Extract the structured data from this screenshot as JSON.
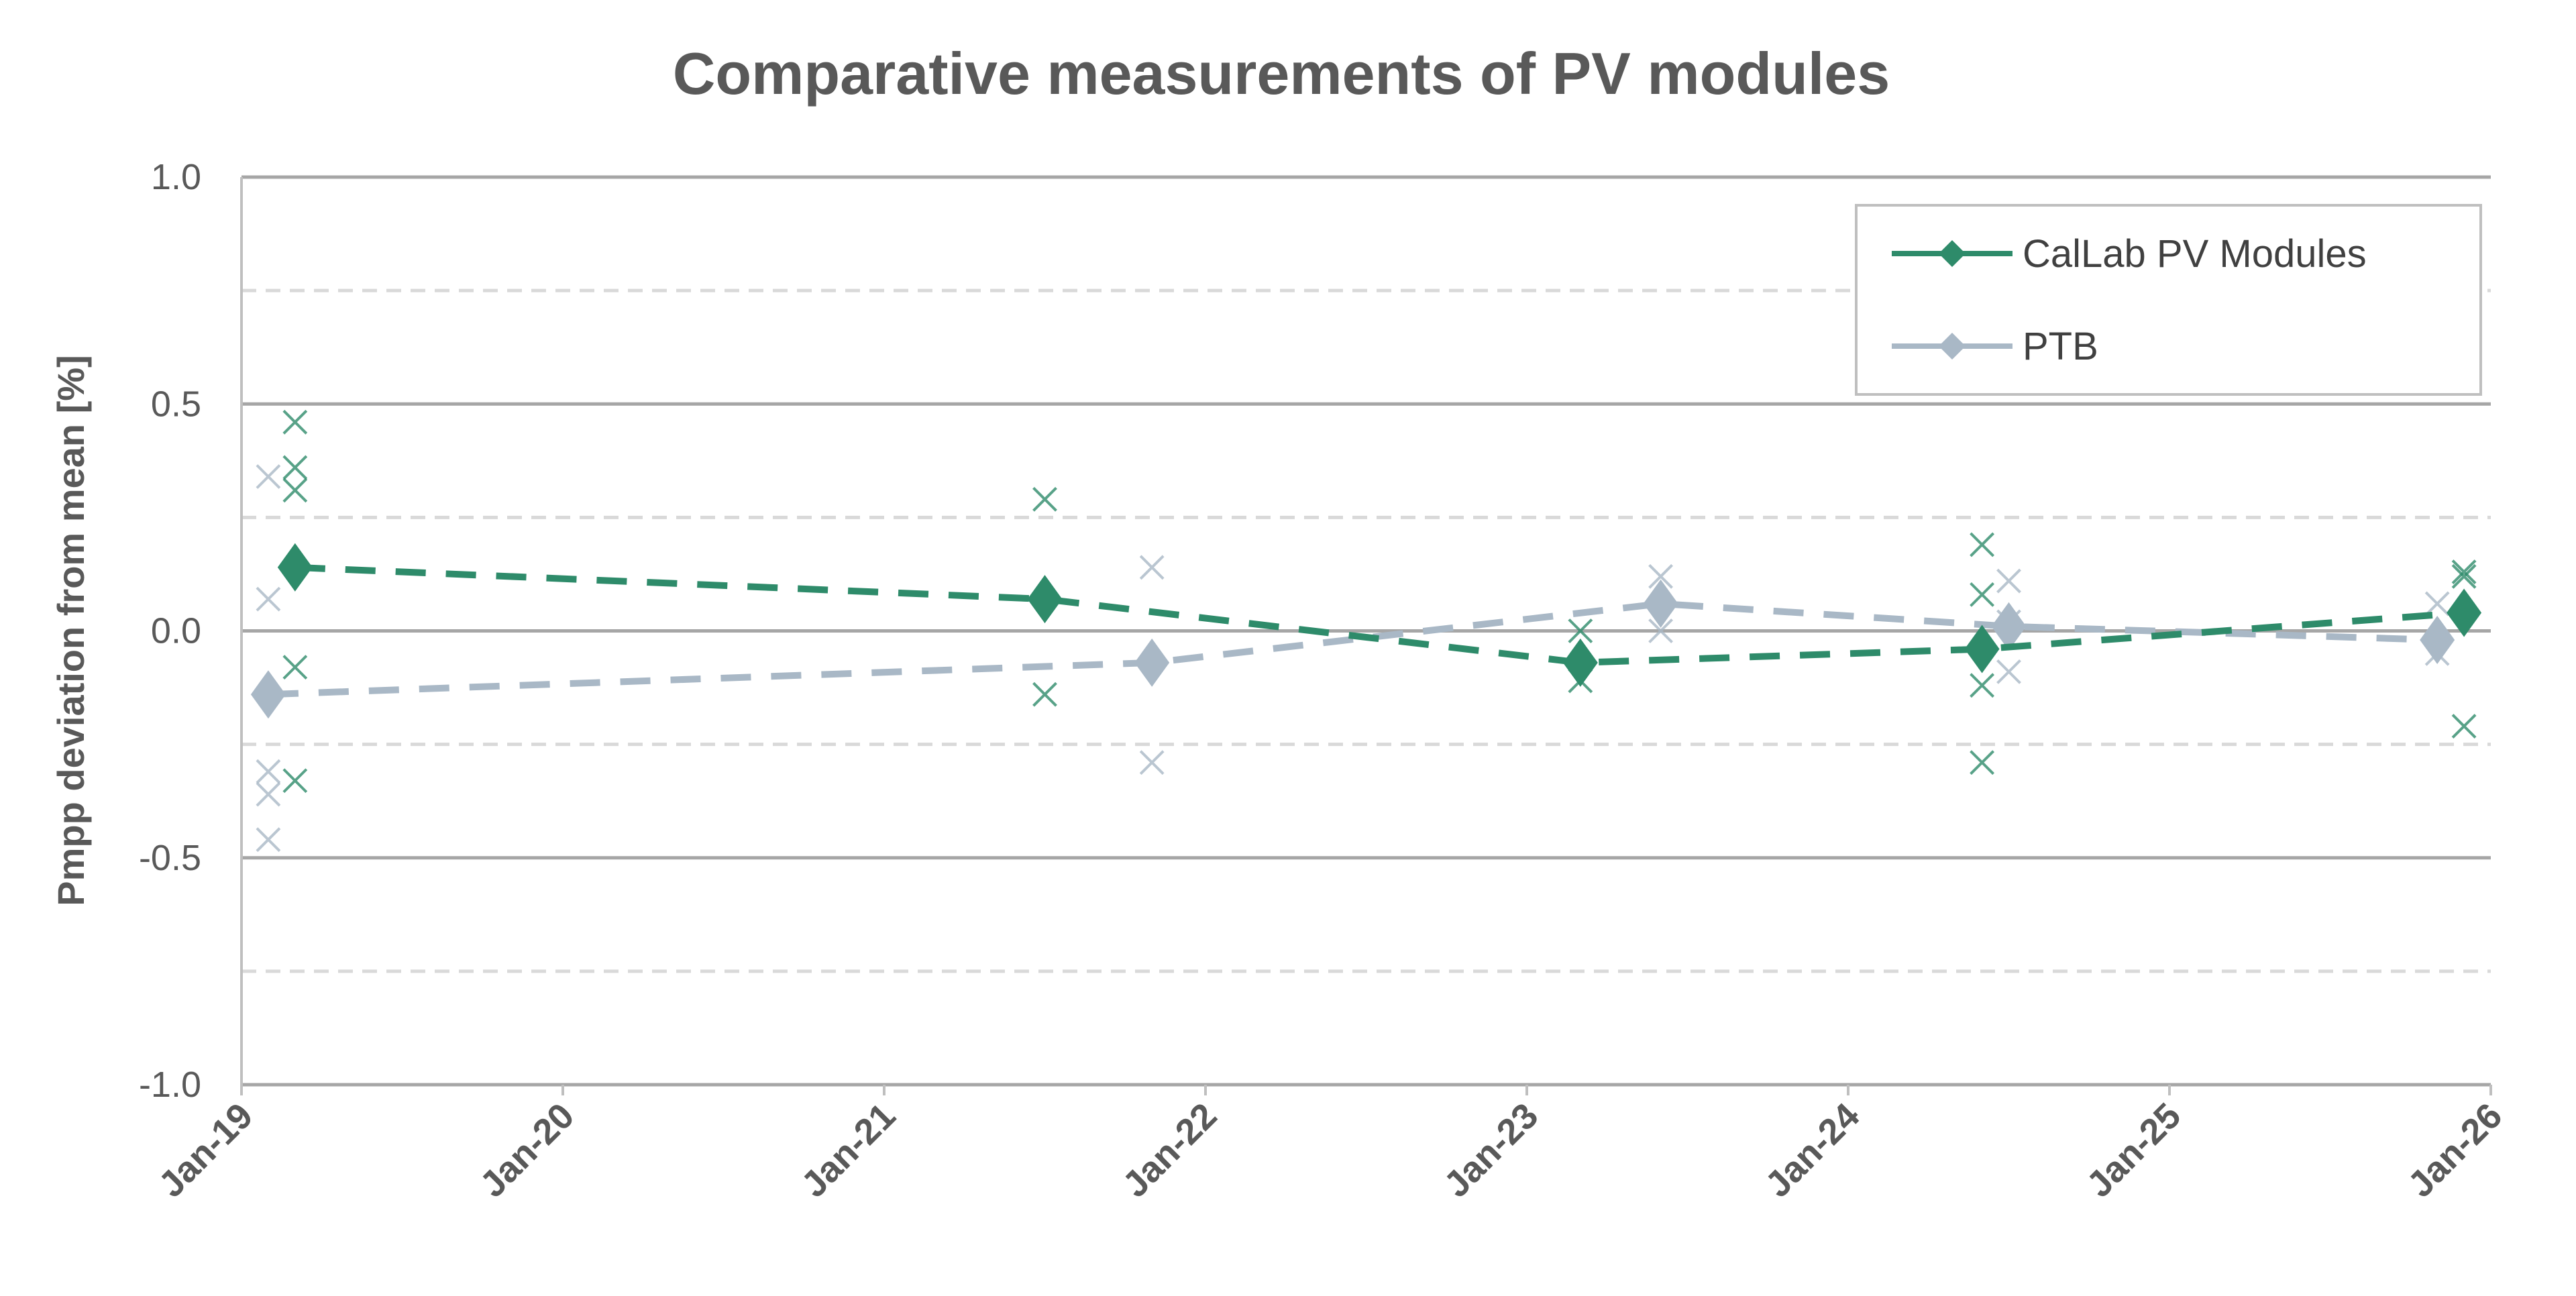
{
  "chart_data": {
    "type": "line",
    "title": "Comparative measurements of PV modules",
    "xlabel": "",
    "ylabel": "Pmpp deviation from mean [%]",
    "xlim": [
      "2019-01",
      "2026-01"
    ],
    "ylim": [
      -1.0,
      1.0
    ],
    "x_ticks": [
      "Jan-19",
      "Jan-20",
      "Jan-21",
      "Jan-22",
      "Jan-23",
      "Jan-24",
      "Jan-25",
      "Jan-26"
    ],
    "y_ticks": [
      "1.0",
      "0.5",
      "0.0",
      "-0.5",
      "-1.0"
    ],
    "y_tick_values": [
      1.0,
      0.5,
      0.0,
      -0.5,
      -1.0
    ],
    "minor_gridlines": [
      0.75,
      0.25,
      -0.25,
      -0.75
    ],
    "grid": true,
    "legend_position": "top-right",
    "series": [
      {
        "name": "CalLab PV Modules",
        "color": "#2e8b6a",
        "mean": {
          "x": [
            "2019-03",
            "2021-07",
            "2023-03",
            "2024-06",
            "2025-12"
          ],
          "y": [
            0.14,
            0.07,
            -0.07,
            -0.04,
            0.04
          ]
        },
        "individual": [
          {
            "x": "2019-03",
            "y": [
              0.46,
              0.36,
              0.31,
              -0.08,
              -0.33
            ]
          },
          {
            "x": "2021-07",
            "y": [
              0.29,
              -0.14
            ]
          },
          {
            "x": "2023-03",
            "y": [
              0.0,
              -0.11
            ]
          },
          {
            "x": "2024-06",
            "y": [
              0.19,
              0.08,
              -0.12,
              -0.29
            ]
          },
          {
            "x": "2025-12",
            "y": [
              0.13,
              0.12,
              -0.21
            ]
          }
        ]
      },
      {
        "name": "PTB",
        "color": "#a9b8c6",
        "mean": {
          "x": [
            "2019-02",
            "2021-11",
            "2023-06",
            "2024-07",
            "2025-11"
          ],
          "y": [
            -0.14,
            -0.07,
            0.06,
            0.01,
            -0.02
          ]
        },
        "individual": [
          {
            "x": "2019-02",
            "y": [
              0.34,
              0.07,
              -0.31,
              -0.36,
              -0.46
            ]
          },
          {
            "x": "2021-11",
            "y": [
              0.14,
              -0.29
            ]
          },
          {
            "x": "2023-06",
            "y": [
              0.12,
              0.0
            ]
          },
          {
            "x": "2024-07",
            "y": [
              0.11,
              0.02,
              -0.09
            ]
          },
          {
            "x": "2025-11",
            "y": [
              0.06,
              -0.05
            ]
          }
        ]
      }
    ]
  }
}
